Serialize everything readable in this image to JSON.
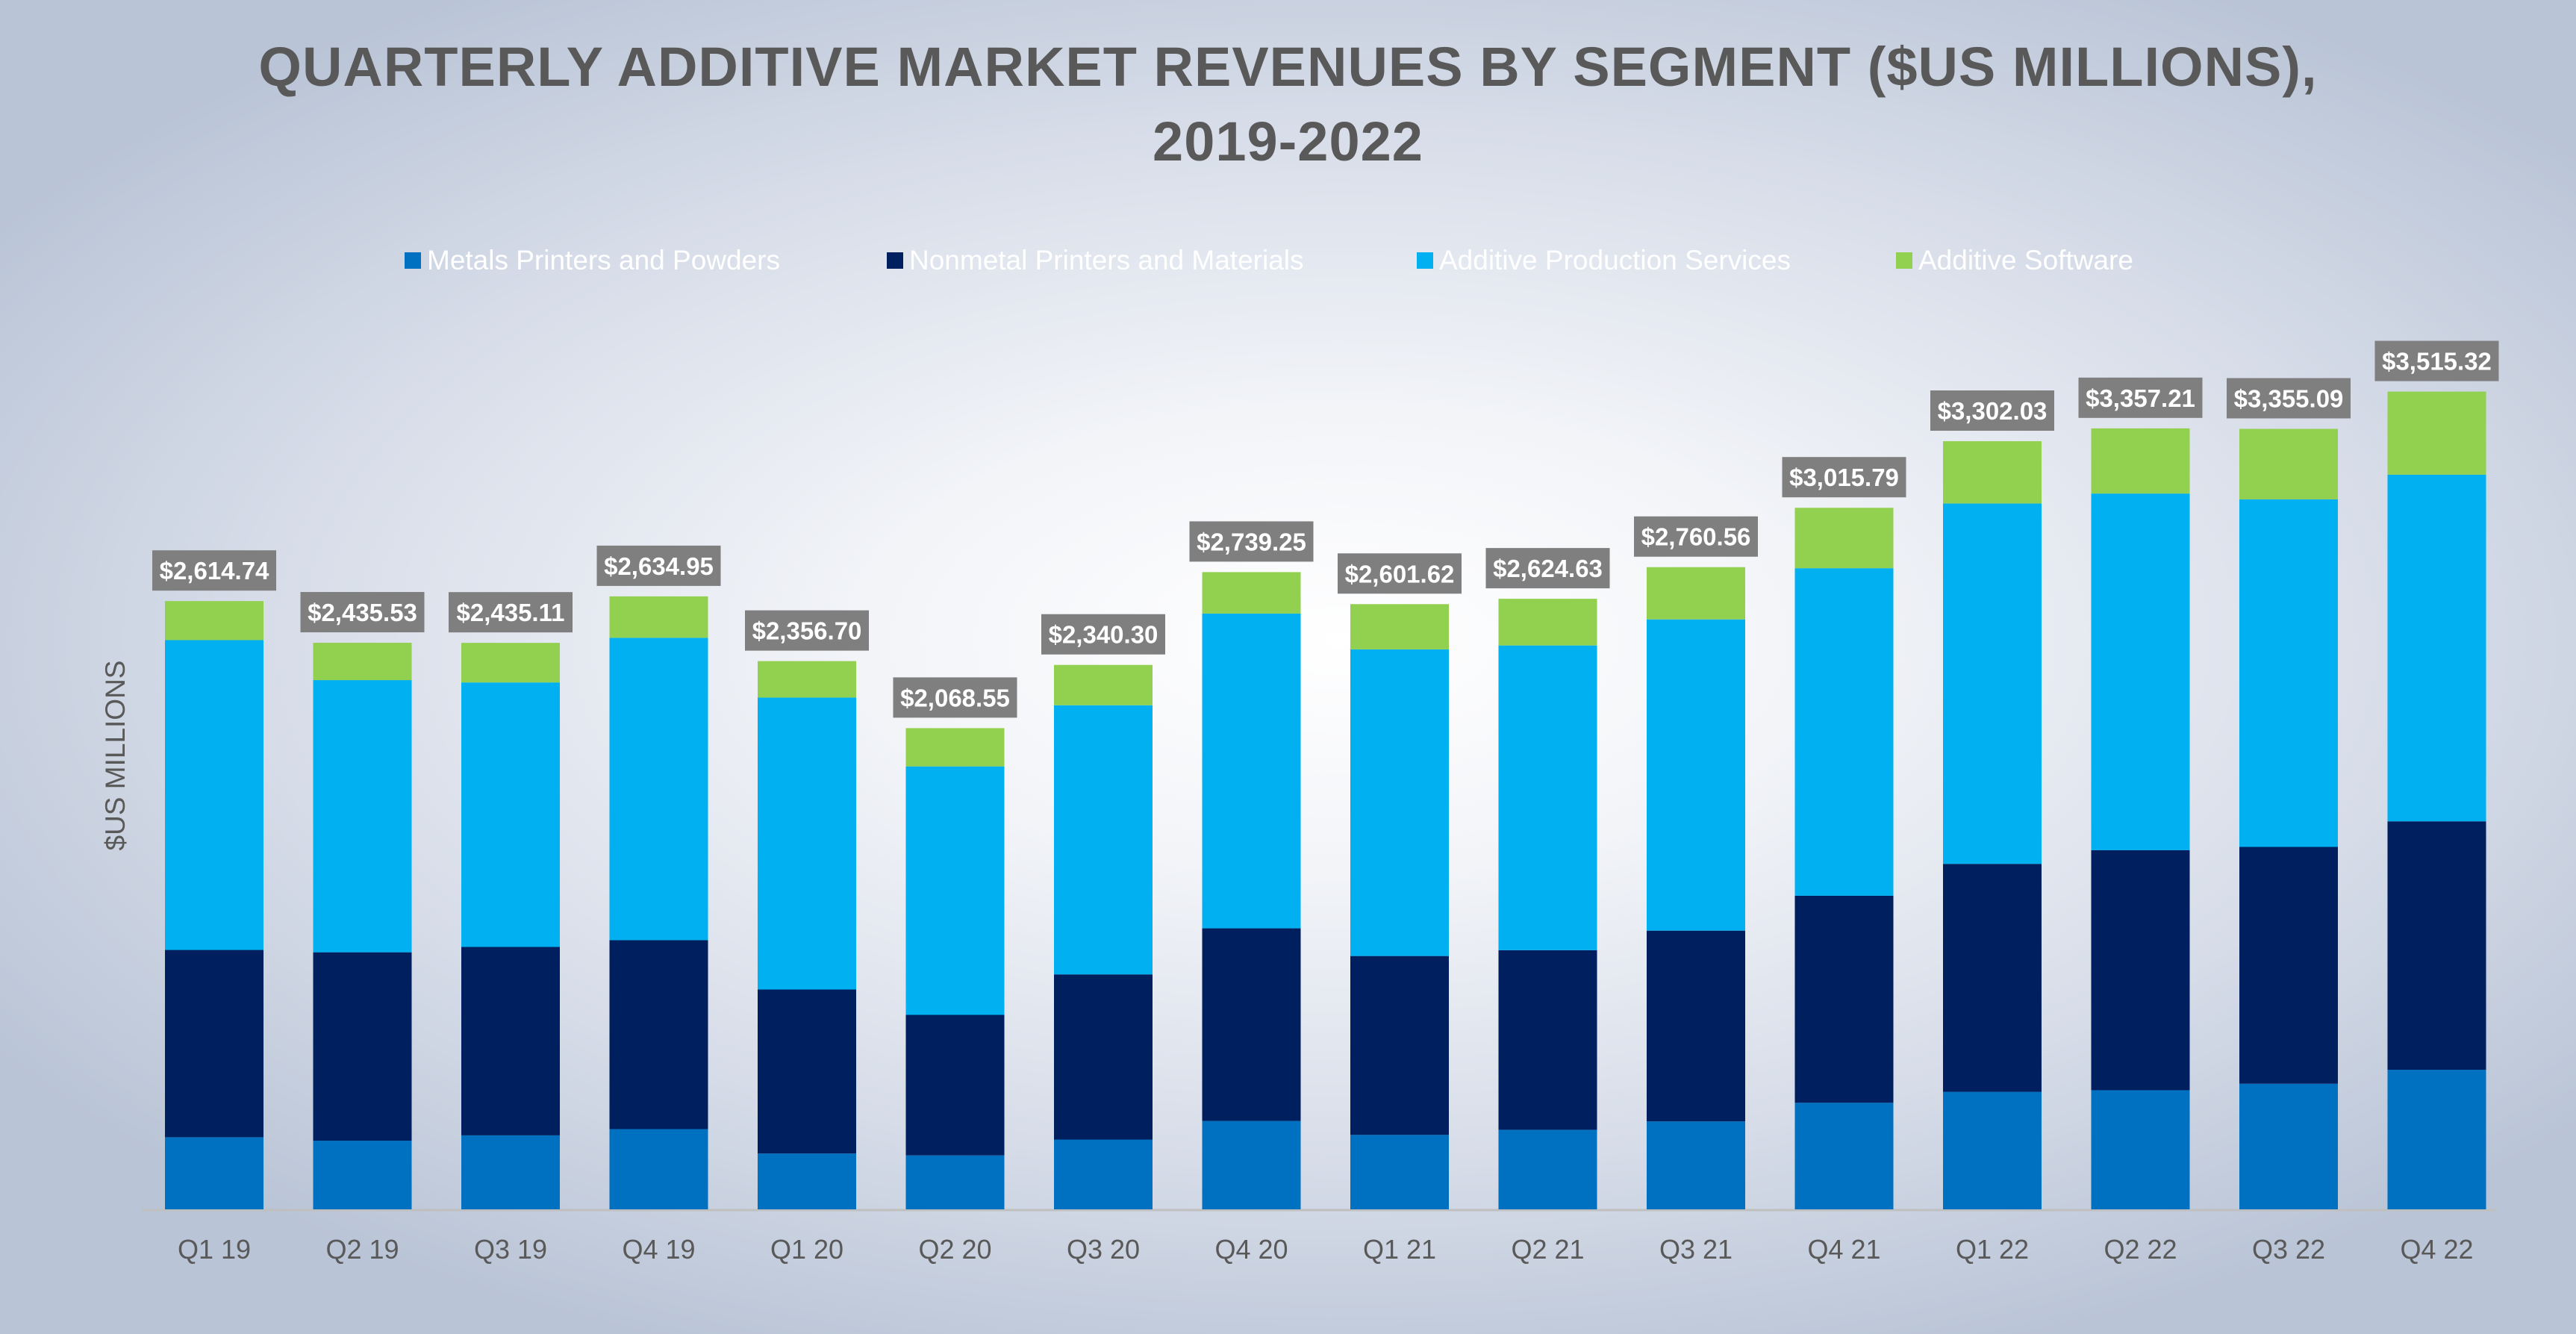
{
  "chart_data": {
    "type": "bar",
    "stacked": true,
    "title_lines": [
      "QUARTERLY ADDITIVE MARKET REVENUES BY SEGMENT ($US MILLIONS),",
      "2019-2022"
    ],
    "xlabel": "",
    "ylabel": "$US MILLIONS",
    "ylim": [
      0,
      3700
    ],
    "grid": false,
    "legend_position": "top",
    "categories": [
      "Q1 19",
      "Q2 19",
      "Q3 19",
      "Q4 19",
      "Q1 20",
      "Q2 20",
      "Q3 20",
      "Q4 20",
      "Q1 21",
      "Q2 21",
      "Q3 21",
      "Q4 21",
      "Q1 22",
      "Q2 22",
      "Q3 22",
      "Q4 22"
    ],
    "series": [
      {
        "name": "Metals Printers and Powders",
        "color": "#0070c0",
        "values": [
          310,
          295,
          318,
          345,
          240,
          232,
          300,
          380,
          320,
          342,
          378,
          458,
          505,
          512,
          540,
          600
        ]
      },
      {
        "name": "Nonmetal Printers and Materials",
        "color": "#001f5f",
        "values": [
          805,
          810,
          810,
          812,
          705,
          604,
          710,
          828,
          769,
          772,
          820,
          890,
          980,
          1032,
          1018,
          1068
        ]
      },
      {
        "name": "Additive Production Services",
        "color": "#00b0f0",
        "values": [
          1332,
          1170,
          1137,
          1300,
          1255,
          1068,
          1157,
          1353,
          1318,
          1310,
          1338,
          1408,
          1549,
          1533,
          1494,
          1490
        ]
      },
      {
        "name": "Additive Software",
        "color": "#92d050",
        "values": [
          167.74,
          160.53,
          170.11,
          177.95,
          156.7,
          164.55,
          173.3,
          178.25,
          194.62,
          200.63,
          224.56,
          259.79,
          268.03,
          280.21,
          303.09,
          357.32
        ]
      }
    ],
    "totals": [
      "$2,614.74",
      "$2,435.53",
      "$2,435.11",
      "$2,634.95",
      "$2,356.70",
      "$2,068.55",
      "$2,340.30",
      "$2,739.25",
      "$2,601.62",
      "$2,624.63",
      "$2,760.56",
      "$3,015.79",
      "$3,302.03",
      "$3,357.21",
      "$3,355.09",
      "$3,515.32"
    ],
    "label_box_color": "#7f7f7f",
    "axis_color": "#bfbfbf"
  }
}
